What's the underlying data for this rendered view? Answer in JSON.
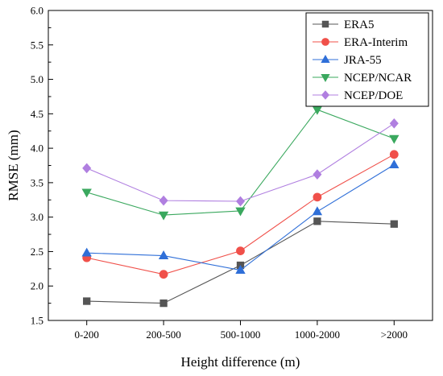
{
  "chart_data": {
    "type": "line",
    "categories": [
      "0-200",
      "200-500",
      "500-1000",
      "1000-2000",
      ">2000"
    ],
    "xlabel": "Height difference (m)",
    "ylabel": "RMSE (mm)",
    "ylim": [
      1.5,
      6.0
    ],
    "yticks": [
      "1.5",
      "2.0",
      "2.5",
      "3.0",
      "3.5",
      "4.0",
      "4.5",
      "5.0",
      "5.5",
      "6.0"
    ],
    "grid": false,
    "legend_position": "top-right",
    "series": [
      {
        "name": "ERA5",
        "color": "#555555",
        "marker": "square",
        "values": [
          1.78,
          1.75,
          2.3,
          2.94,
          2.9
        ]
      },
      {
        "name": "ERA-Interim",
        "color": "#f0504a",
        "marker": "circle",
        "values": [
          2.41,
          2.17,
          2.51,
          3.29,
          3.91
        ]
      },
      {
        "name": "JRA-55",
        "color": "#2f6fd8",
        "marker": "triangle-up",
        "values": [
          2.48,
          2.44,
          2.23,
          3.08,
          3.76
        ]
      },
      {
        "name": "NCEP/NCAR",
        "color": "#3aa85e",
        "marker": "triangle-down",
        "values": [
          3.36,
          3.03,
          3.09,
          4.56,
          4.14
        ]
      },
      {
        "name": "NCEP/DOE",
        "color": "#b07fe0",
        "marker": "diamond",
        "values": [
          3.71,
          3.24,
          3.23,
          3.62,
          4.36
        ]
      }
    ]
  }
}
